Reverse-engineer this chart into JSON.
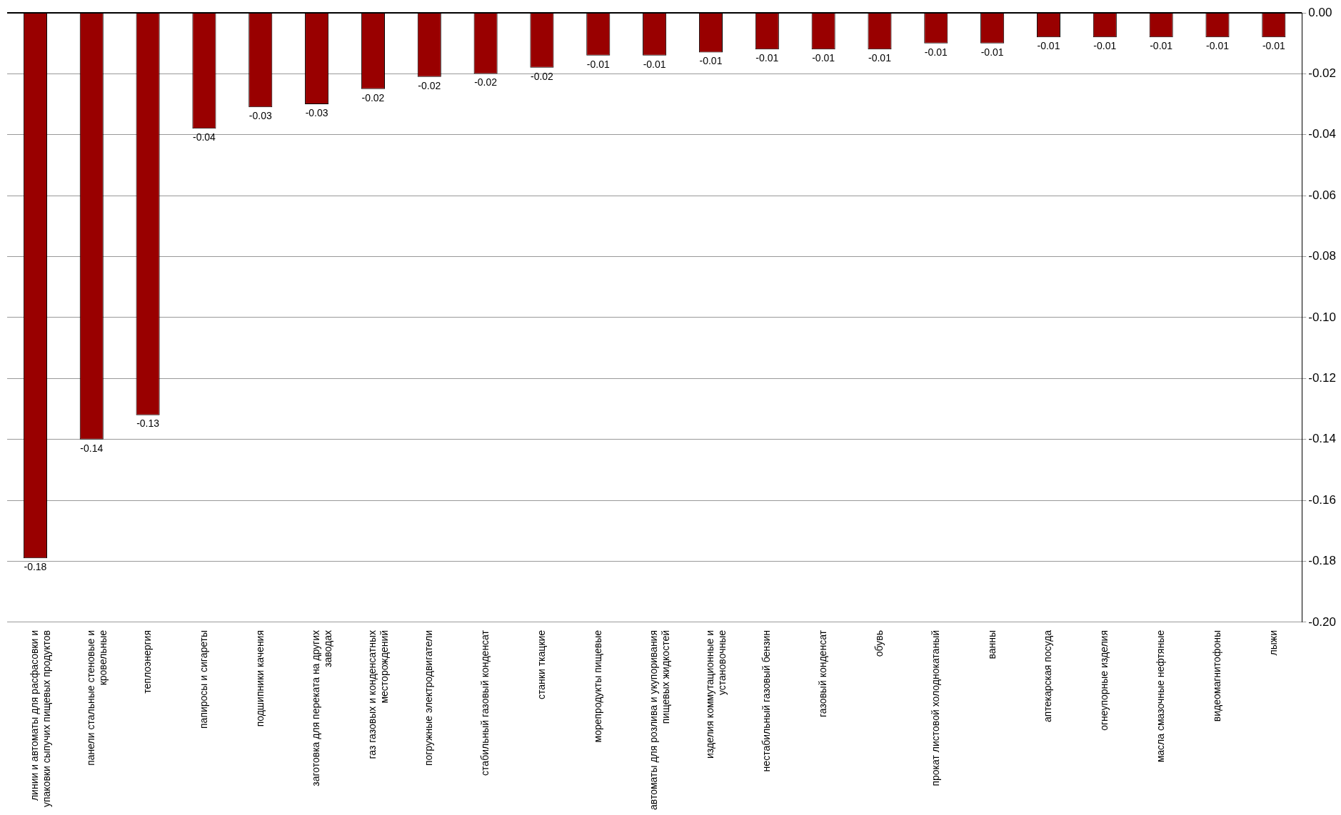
{
  "chart_data": {
    "type": "bar",
    "categories": [
      "линии и автоматы для расфасовки и упаковки сыпучих пищевых продуктов",
      "панели стальные стеновые и кровельные",
      "теплоэнергия",
      "папиросы и сигареты",
      "подшипники качения",
      "заготовка для переката на других заводах",
      "газ газовых и конденсатных месторождений",
      "погружные электродвигатели",
      "стабильный газовый конденсат",
      "станки ткацкие",
      "морепродукты пищевые",
      "автоматы для розлива и укупоривания пищевых жидкостей",
      "изделия коммутационные и установочные",
      "нестабильный газовый бензин",
      "газовый конденсат",
      "обувь",
      "прокат листовой холоднокатаный",
      "ванны",
      "аптекарская посуда",
      "огнеупорные изделия",
      "масла смазочные нефтяные",
      "видеомагнитофоны",
      "лыжи"
    ],
    "values": [
      -0.179,
      -0.14,
      -0.132,
      -0.038,
      -0.031,
      -0.03,
      -0.025,
      -0.021,
      -0.02,
      -0.018,
      -0.014,
      -0.014,
      -0.013,
      -0.012,
      -0.012,
      -0.012,
      -0.01,
      -0.01,
      -0.008,
      -0.008,
      -0.008,
      -0.008,
      -0.008
    ],
    "value_labels": [
      "-0.18",
      "-0.14",
      "-0.13",
      "-0.04",
      "-0.03",
      "-0.03",
      "-0.02",
      "-0.02",
      "-0.02",
      "-0.02",
      "-0.01",
      "-0.01",
      "-0.01",
      "-0.01",
      "-0.01",
      "-0.01",
      "-0.01",
      "-0.01",
      "-0.01",
      "-0.01",
      "-0.01",
      "-0.01",
      "-0.01"
    ],
    "color": "#990000",
    "ylim": [
      -0.2,
      0
    ],
    "yticks": [
      {
        "value": -0.2,
        "label": "-0.20"
      },
      {
        "value": -0.18,
        "label": "-0.18"
      },
      {
        "value": -0.16,
        "label": "-0.16"
      },
      {
        "value": -0.14,
        "label": "-0.14"
      },
      {
        "value": -0.12,
        "label": "-0.12"
      },
      {
        "value": -0.1,
        "label": "-0.10"
      },
      {
        "value": -0.08,
        "label": "-0.08"
      },
      {
        "value": -0.06,
        "label": "-0.06"
      },
      {
        "value": -0.04,
        "label": "-0.04"
      },
      {
        "value": -0.02,
        "label": "-0.02"
      },
      {
        "value": 0,
        "label": "0.00"
      }
    ],
    "grid": "y",
    "legend": false
  }
}
